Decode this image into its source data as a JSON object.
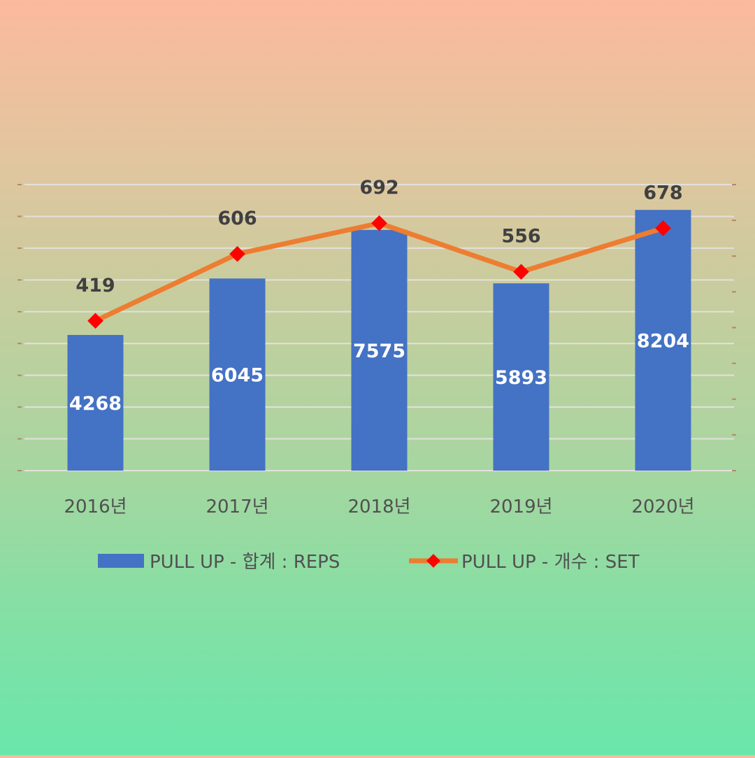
{
  "chart_data": {
    "type": "bar",
    "categories": [
      "2016년",
      "2017년",
      "2018년",
      "2019년",
      "2020년"
    ],
    "series": [
      {
        "name": "PULL UP - 합계 : REPS",
        "type": "bar",
        "axis": "left",
        "values": [
          4268,
          6045,
          7575,
          5893,
          8204
        ],
        "color": "#4472c4"
      },
      {
        "name": "PULL UP - 개수 : SET",
        "type": "line",
        "axis": "right",
        "values": [
          419,
          606,
          692,
          556,
          678
        ],
        "color": "#ed7d31",
        "marker_color": "#ff0000",
        "marker": "diamond"
      }
    ],
    "y_left_lim": [
      0,
      9000
    ],
    "y_right_lim": [
      0,
      800
    ],
    "grid": true,
    "axis_tick_labels_visible": false,
    "legend_position": "bottom"
  }
}
